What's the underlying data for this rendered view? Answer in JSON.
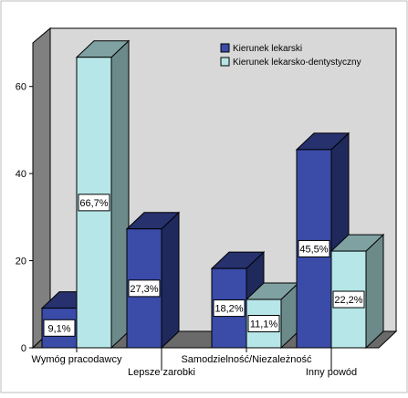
{
  "chart_data": {
    "type": "bar",
    "categories": [
      "Wymóg pracodawcy",
      "Lepsze zarobki",
      "Samodzielność/Niezależność",
      "Inny powód"
    ],
    "series": [
      {
        "name": "Kierunek lekarski",
        "values": [
          9.1,
          27.3,
          18.2,
          45.5
        ],
        "labels": [
          "9,1%",
          "27,3%",
          "18,2%",
          "45,5%"
        ],
        "color": "#3a4ba8"
      },
      {
        "name": "Kierunek lekarsko-dentystyczny",
        "values": [
          66.7,
          0,
          11.1,
          22.2
        ],
        "labels": [
          "66,7%",
          "",
          "11,1%",
          "22,2%"
        ],
        "color": "#b6e6e8"
      }
    ],
    "ylim": [
      0,
      70
    ],
    "yticks": [
      0,
      20,
      40,
      60
    ],
    "title": "",
    "xlabel": "",
    "ylabel": "",
    "grid": false,
    "legend_position": "top-right",
    "colors": {
      "wall": "#d8d8d8",
      "floor": "#6a6a6a",
      "side_wall": "#808080"
    }
  }
}
